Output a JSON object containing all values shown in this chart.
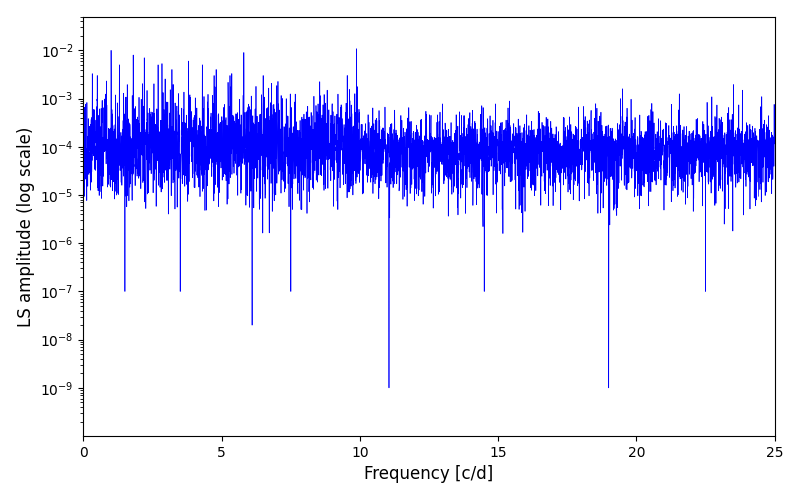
{
  "title": "",
  "xlabel": "Frequency [c/d]",
  "ylabel": "LS amplitude (log scale)",
  "xlim": [
    0,
    25
  ],
  "ylim": [
    1e-10,
    0.05
  ],
  "line_color": "#0000FF",
  "line_width": 0.5,
  "yscale": "log",
  "figsize": [
    8.0,
    5.0
  ],
  "dpi": 100,
  "num_points": 5000,
  "seed": 77,
  "background_color": "#ffffff",
  "yticks": [
    1e-09,
    1e-08,
    1e-07,
    1e-06,
    1e-05,
    0.0001,
    0.001,
    0.01
  ],
  "xticks": [
    0,
    5,
    10,
    15,
    20,
    25
  ]
}
